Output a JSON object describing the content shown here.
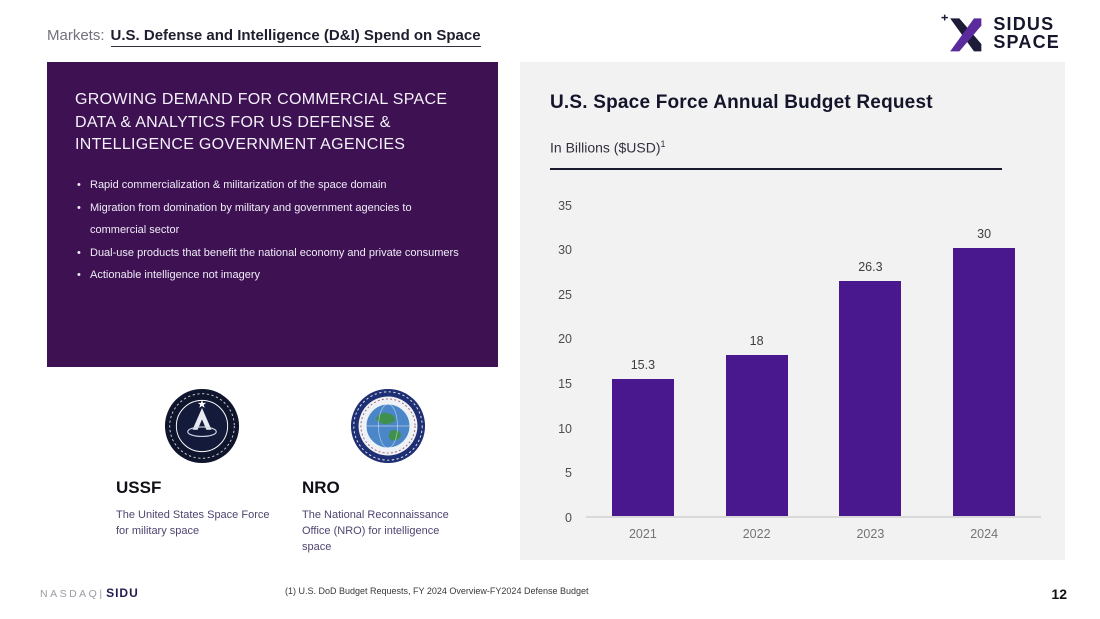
{
  "header": {
    "prefix": "Markets:",
    "title": "U.S. Defense and Intelligence (D&I) Spend on Space"
  },
  "logo": {
    "line1": "SIDUS",
    "line2": "SPACE"
  },
  "left_panel": {
    "heading": "GROWING DEMAND FOR COMMERCIAL SPACE DATA & ANALYTICS FOR US DEFENSE & INTELLIGENCE GOVERNMENT AGENCIES",
    "bullets": [
      "Rapid commercialization & militarization of the space domain",
      "Migration from domination by military and government agencies to commercial sector",
      "Dual-use products that benefit the national economy and private consumers",
      "Actionable intelligence not imagery"
    ]
  },
  "agencies": [
    {
      "abbr": "USSF",
      "description": "The United States Space Force for military space"
    },
    {
      "abbr": "NRO",
      "description": "The National Reconnaissance Office (NRO) for intelligence space"
    }
  ],
  "chart_data": {
    "type": "bar",
    "title": "U.S. Space Force Annual Budget Request",
    "subtitle": "In Billions ($USD)",
    "subtitle_superscript": "1",
    "categories": [
      "2021",
      "2022",
      "2023",
      "2024"
    ],
    "values": [
      15.3,
      18,
      26.3,
      30
    ],
    "xlabel": "",
    "ylabel": "",
    "ylim": [
      0,
      35
    ],
    "yticks": [
      0,
      5,
      10,
      15,
      20,
      25,
      30,
      35
    ],
    "grid": false,
    "legend": false,
    "bar_color": "#49188f"
  },
  "footer": {
    "exchange": "NASDAQ",
    "separator": "|",
    "ticker": "SIDU",
    "footnote": "(1) U.S. DoD Budget Requests, FY 2024 Overview-FY2024 Defense Budget",
    "page_number": "12"
  },
  "colors": {
    "panel_purple": "#3e1153",
    "bar_purple": "#49188f",
    "chart_panel_bg": "#f2f2f2",
    "logo_navy": "#1c1c38",
    "logo_purple": "#5b2a9d"
  }
}
